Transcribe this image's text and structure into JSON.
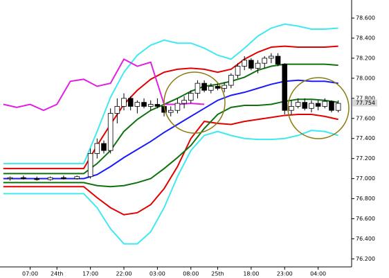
{
  "chart_data": {
    "type": "candlestick",
    "xlim": [
      -0.5,
      52
    ],
    "ylim": [
      76.12,
      78.78
    ],
    "xticks": [
      {
        "value": 4,
        "label": "07:00"
      },
      {
        "value": 8,
        "label": "24th"
      },
      {
        "value": 13,
        "label": "17:00"
      },
      {
        "value": 18,
        "label": "22:00"
      },
      {
        "value": 23,
        "label": "03:00"
      },
      {
        "value": 28,
        "label": "08:00"
      },
      {
        "value": 32,
        "label": "25th"
      },
      {
        "value": 37,
        "label": "18:00"
      },
      {
        "value": 42,
        "label": "23:00"
      },
      {
        "value": 47,
        "label": "04:00"
      }
    ],
    "yticks": [
      {
        "value": 76.2,
        "label": "76.200"
      },
      {
        "value": 76.4,
        "label": "76.400"
      },
      {
        "value": 76.6,
        "label": "76.600"
      },
      {
        "value": 76.8,
        "label": "76.800"
      },
      {
        "value": 77.0,
        "label": "77.000"
      },
      {
        "value": 77.2,
        "label": "77.200"
      },
      {
        "value": 77.4,
        "label": "77.400"
      },
      {
        "value": 77.6,
        "label": "77.600"
      },
      {
        "value": 77.8,
        "label": "77.800"
      },
      {
        "value": 78.0,
        "label": "78.000"
      },
      {
        "value": 78.2,
        "label": "78.200"
      },
      {
        "value": 78.4,
        "label": "78.400"
      },
      {
        "value": 78.6,
        "label": "78.600"
      }
    ],
    "last_price": 77.754,
    "candles": {
      "x": [
        1,
        3,
        5,
        7,
        9,
        11,
        13,
        14,
        15,
        16,
        17,
        18,
        19,
        20,
        21,
        22,
        23,
        24,
        25,
        26,
        27,
        28,
        29,
        30,
        31,
        32,
        33,
        34,
        35,
        36,
        37,
        38,
        39,
        40,
        41,
        42,
        43,
        44,
        45,
        46,
        47,
        48,
        49,
        50
      ],
      "open": [
        77.0,
        77.01,
        77.0,
        76.99,
        77.01,
        77.0,
        77.02,
        77.25,
        77.35,
        77.28,
        77.65,
        77.72,
        77.8,
        77.72,
        77.76,
        77.72,
        77.74,
        77.72,
        77.66,
        77.68,
        77.75,
        77.78,
        77.85,
        77.95,
        77.88,
        77.92,
        77.9,
        77.93,
        78.03,
        78.12,
        78.18,
        78.1,
        78.15,
        78.2,
        78.22,
        78.14,
        77.68,
        77.72,
        77.76,
        77.7,
        77.75,
        77.72,
        77.77,
        77.68
      ],
      "high": [
        77.02,
        77.03,
        77.02,
        77.02,
        77.03,
        77.03,
        77.3,
        77.4,
        77.38,
        77.7,
        77.8,
        77.85,
        77.82,
        77.78,
        77.8,
        77.78,
        77.8,
        77.74,
        77.72,
        77.8,
        77.82,
        77.88,
        77.98,
        77.98,
        77.95,
        77.96,
        77.96,
        78.05,
        78.15,
        78.22,
        78.2,
        78.18,
        78.22,
        78.25,
        78.25,
        78.15,
        77.78,
        77.8,
        77.8,
        77.78,
        77.78,
        77.8,
        77.78,
        77.78
      ],
      "low": [
        76.98,
        76.99,
        76.98,
        76.98,
        76.99,
        76.99,
        77.0,
        77.2,
        77.25,
        77.25,
        77.55,
        77.68,
        77.68,
        77.65,
        77.7,
        77.68,
        77.7,
        77.62,
        77.62,
        77.65,
        77.7,
        77.75,
        77.8,
        77.86,
        77.85,
        77.88,
        77.86,
        77.9,
        78.0,
        78.08,
        78.08,
        78.05,
        78.1,
        78.15,
        78.12,
        77.64,
        77.64,
        77.7,
        77.68,
        77.66,
        77.68,
        77.7,
        77.66,
        77.66
      ],
      "close": [
        77.01,
        77.0,
        76.99,
        77.01,
        77.0,
        77.02,
        77.25,
        77.35,
        77.28,
        77.65,
        77.72,
        77.8,
        77.72,
        77.76,
        77.72,
        77.74,
        77.72,
        77.66,
        77.68,
        77.75,
        77.78,
        77.85,
        77.95,
        77.88,
        77.92,
        77.9,
        77.93,
        78.03,
        78.12,
        78.18,
        78.1,
        78.15,
        78.2,
        78.22,
        78.14,
        77.68,
        77.72,
        77.76,
        77.7,
        77.75,
        77.72,
        77.77,
        77.68,
        77.75
      ]
    },
    "series": [
      {
        "color": "#40e8f0",
        "x": [
          0,
          2,
          4,
          6,
          8,
          10,
          12,
          14,
          16,
          18,
          20,
          22,
          24,
          26,
          28,
          30,
          32,
          34,
          36,
          38,
          40,
          42,
          44,
          46,
          48,
          50
        ],
        "values": [
          77.15,
          77.15,
          77.15,
          77.15,
          77.15,
          77.15,
          77.15,
          77.47,
          77.81,
          78.06,
          78.23,
          78.33,
          78.38,
          78.35,
          78.35,
          78.3,
          78.23,
          78.19,
          78.3,
          78.42,
          78.5,
          78.54,
          78.52,
          78.49,
          78.49,
          78.5
        ]
      },
      {
        "color": "#40e8f0",
        "x": [
          0,
          2,
          4,
          6,
          8,
          10,
          12,
          14,
          16,
          18,
          20,
          22,
          24,
          26,
          28,
          30,
          32,
          34,
          36,
          38,
          40,
          42,
          44,
          46,
          48,
          50
        ],
        "values": [
          76.85,
          76.85,
          76.85,
          76.85,
          76.85,
          76.85,
          76.85,
          76.71,
          76.5,
          76.35,
          76.35,
          76.47,
          76.71,
          77.02,
          77.28,
          77.43,
          77.47,
          77.43,
          77.4,
          77.39,
          77.39,
          77.4,
          77.43,
          77.48,
          77.47,
          77.43
        ]
      },
      {
        "color": "#e00000",
        "x": [
          0,
          2,
          4,
          6,
          8,
          10,
          12,
          14,
          16,
          18,
          20,
          22,
          24,
          26,
          28,
          30,
          32,
          34,
          36,
          38,
          40,
          42,
          44,
          46,
          48,
          50
        ],
        "values": [
          77.1,
          77.1,
          77.1,
          77.1,
          77.1,
          77.1,
          77.1,
          77.33,
          77.54,
          77.74,
          77.88,
          77.99,
          78.06,
          78.09,
          78.1,
          78.09,
          78.06,
          78.09,
          78.19,
          78.26,
          78.31,
          78.32,
          78.31,
          78.31,
          78.31,
          78.32
        ]
      },
      {
        "color": "#e00000",
        "x": [
          0,
          2,
          4,
          6,
          8,
          10,
          12,
          14,
          16,
          18,
          20,
          22,
          24,
          26,
          28,
          30,
          32,
          34,
          36,
          38,
          40,
          42,
          44,
          46,
          48,
          50
        ],
        "values": [
          76.92,
          76.92,
          76.92,
          76.92,
          76.92,
          76.92,
          76.92,
          76.81,
          76.71,
          76.64,
          76.66,
          76.74,
          76.9,
          77.12,
          77.4,
          77.57,
          77.55,
          77.54,
          77.57,
          77.59,
          77.61,
          77.63,
          77.64,
          77.64,
          77.62,
          77.59
        ]
      },
      {
        "color": "#107010",
        "x": [
          0,
          2,
          4,
          6,
          8,
          10,
          12,
          14,
          16,
          18,
          20,
          22,
          24,
          26,
          28,
          30,
          32,
          34,
          36,
          38,
          40,
          42,
          44,
          46,
          48,
          50
        ],
        "values": [
          77.05,
          77.05,
          77.05,
          77.05,
          77.05,
          77.05,
          77.05,
          77.15,
          77.28,
          77.47,
          77.59,
          77.68,
          77.74,
          77.8,
          77.87,
          77.92,
          77.94,
          77.97,
          78.01,
          78.08,
          78.12,
          78.14,
          78.14,
          78.14,
          78.14,
          78.13
        ]
      },
      {
        "color": "#107010",
        "x": [
          0,
          2,
          4,
          6,
          8,
          10,
          12,
          14,
          16,
          18,
          20,
          22,
          24,
          26,
          28,
          30,
          32,
          34,
          36,
          38,
          40,
          42,
          44,
          46,
          48,
          50
        ],
        "values": [
          76.96,
          76.96,
          76.96,
          76.96,
          76.96,
          76.96,
          76.96,
          76.93,
          76.92,
          76.93,
          76.96,
          77.0,
          77.1,
          77.21,
          77.33,
          77.5,
          77.64,
          77.71,
          77.73,
          77.73,
          77.74,
          77.77,
          77.79,
          77.79,
          77.78,
          77.76
        ]
      },
      {
        "color": "#1a1aff",
        "x": [
          0,
          2,
          4,
          6,
          8,
          10,
          12,
          14,
          16,
          18,
          20,
          22,
          24,
          26,
          28,
          30,
          32,
          34,
          36,
          38,
          40,
          42,
          44,
          46,
          48,
          50
        ],
        "values": [
          77.0,
          77.0,
          77.0,
          77.0,
          77.0,
          77.0,
          77.0,
          77.04,
          77.12,
          77.21,
          77.29,
          77.37,
          77.46,
          77.54,
          77.62,
          77.7,
          77.78,
          77.83,
          77.86,
          77.9,
          77.94,
          77.97,
          77.98,
          77.97,
          77.97,
          77.95
        ]
      },
      {
        "color": "#e020e0",
        "x": [
          0,
          2,
          4,
          6,
          8,
          10,
          12,
          14,
          16,
          18,
          20,
          22,
          24,
          26,
          28,
          30
        ],
        "values": [
          77.74,
          77.71,
          77.74,
          77.68,
          77.74,
          77.97,
          77.99,
          77.92,
          77.95,
          78.19,
          78.12,
          78.16,
          77.74,
          77.74,
          77.75,
          77.74
        ]
      }
    ]
  }
}
